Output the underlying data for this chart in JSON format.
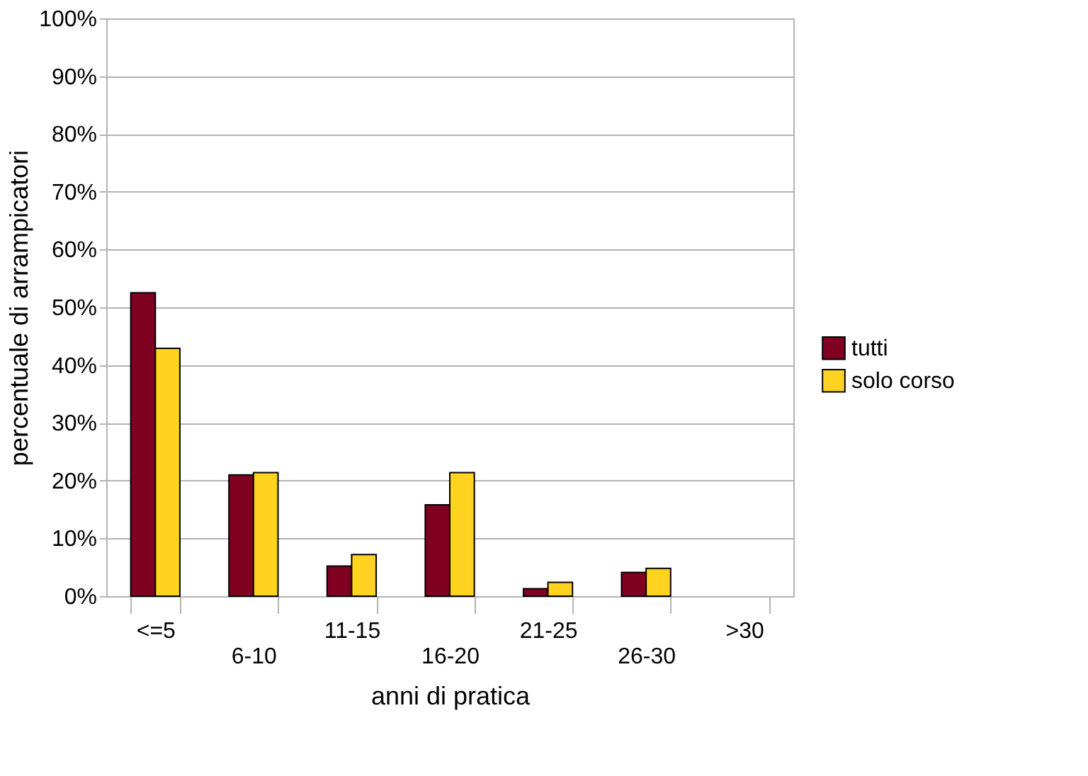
{
  "chart_data": {
    "type": "bar",
    "xlabel": "anni di pratica",
    "ylabel": "percentuale di arrampicatori",
    "categories": [
      "<=5",
      "6-10",
      "11-15",
      "16-20",
      "21-25",
      "26-30",
      ">30"
    ],
    "series": [
      {
        "name": "tutti",
        "color": "#7f0021",
        "values": [
          52.5,
          21.0,
          5.2,
          15.8,
          1.3,
          4.1,
          null
        ]
      },
      {
        "name": "solo corso",
        "color": "#ffd320",
        "values": [
          42.9,
          21.4,
          7.2,
          21.4,
          2.4,
          4.8,
          null
        ]
      }
    ],
    "ylim": [
      0,
      100
    ],
    "yticks": [
      {
        "value": 0,
        "label": "0%"
      },
      {
        "value": 10,
        "label": "10%"
      },
      {
        "value": 20,
        "label": "20%"
      },
      {
        "value": 30,
        "label": "30%"
      },
      {
        "value": 40,
        "label": "40%"
      },
      {
        "value": 50,
        "label": "50%"
      },
      {
        "value": 60,
        "label": "60%"
      },
      {
        "value": 70,
        "label": "70%"
      },
      {
        "value": 80,
        "label": "80%"
      },
      {
        "value": 90,
        "label": "90%"
      },
      {
        "value": 100,
        "label": "100%"
      }
    ],
    "grid": "y",
    "legend": "right"
  }
}
